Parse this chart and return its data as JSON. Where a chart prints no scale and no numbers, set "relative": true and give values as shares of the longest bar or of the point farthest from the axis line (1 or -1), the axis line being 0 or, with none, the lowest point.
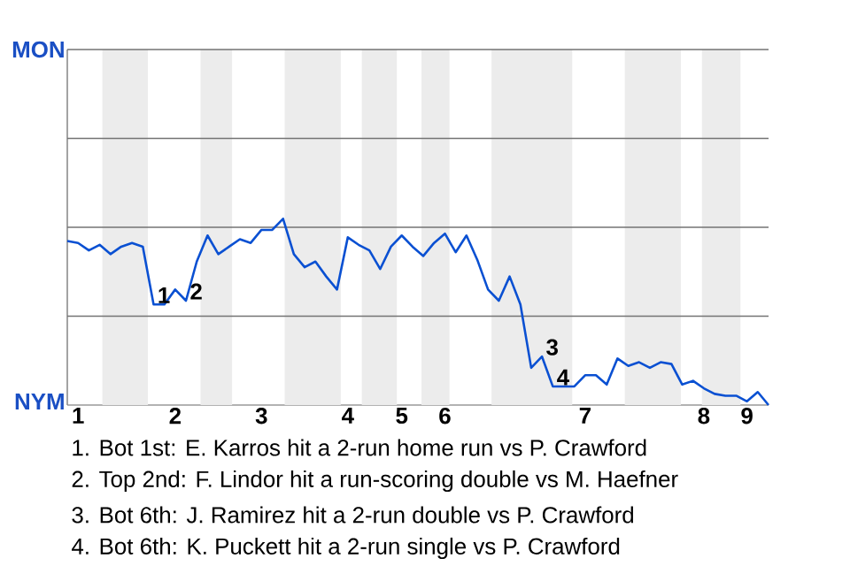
{
  "chart_data": {
    "type": "line",
    "relative": true,
    "categories": [
      null,
      "1",
      null,
      null,
      null,
      null,
      null,
      null,
      null,
      null,
      "2",
      null,
      null,
      null,
      null,
      null,
      null,
      null,
      "3",
      null,
      null,
      null,
      null,
      null,
      null,
      null,
      "4",
      null,
      null,
      null,
      null,
      "5",
      null,
      null,
      null,
      "6",
      null,
      null,
      null,
      null,
      null,
      null,
      null,
      null,
      null,
      null,
      null,
      null,
      "7",
      null,
      null,
      null,
      null,
      null,
      null,
      null,
      null,
      null,
      null,
      "8",
      null,
      null,
      null,
      "9",
      null,
      null
    ],
    "series": [
      {
        "color": "#0a50d2",
        "values": [
          0.88,
          0.87,
          0.83,
          0.86,
          0.81,
          0.85,
          0.87,
          0.85,
          0.54,
          0.54,
          0.62,
          0.56,
          0.77,
          0.91,
          0.81,
          0.85,
          0.89,
          0.87,
          0.94,
          0.94,
          1,
          0.81,
          0.74,
          0.77,
          0.69,
          0.62,
          0.9,
          0.86,
          0.83,
          0.73,
          0.85,
          0.91,
          0.85,
          0.8,
          0.87,
          0.92,
          0.82,
          0.91,
          0.78,
          0.62,
          0.56,
          0.69,
          0.54,
          0.2,
          0.26,
          0.1,
          0.1,
          0.1,
          0.16,
          0.16,
          0.11,
          0.25,
          0.21,
          0.23,
          0.2,
          0.23,
          0.22,
          0.11,
          0.13,
          0.09,
          0.06,
          0.05,
          0.05,
          0.02,
          0.07,
          0
        ]
      }
    ],
    "line_style": "solid",
    "ref_lines": [
      {
        "axis": "y",
        "value": 0.477,
        "color": "#737373"
      },
      {
        "axis": "y",
        "value": 0.954,
        "color": "#737373"
      },
      {
        "axis": "y",
        "value": 1.431,
        "color": "#737373"
      },
      {
        "axis": "y",
        "value": 1.908,
        "color": "#737373"
      }
    ],
    "annotations": [
      "MON",
      "NYM",
      {
        "text": "1",
        "y": 0.54
      },
      {
        "text": "2",
        "y": 0.56
      },
      {
        "text": "3",
        "y": 0.26
      },
      {
        "text": "4",
        "y": 0.1
      },
      "1. Bot 1st: E. Karros hit a 2-run home run vs P. Crawford",
      "2. Top 2nd: F. Lindor hit a run-scoring double vs M. Haefner",
      "3. Bot 6th: J. Ramirez hit a 2-run double vs P. Crawford",
      "4. Bot 6th: K. Puckett hit a 2-run single vs P. Crawford"
    ]
  }
}
